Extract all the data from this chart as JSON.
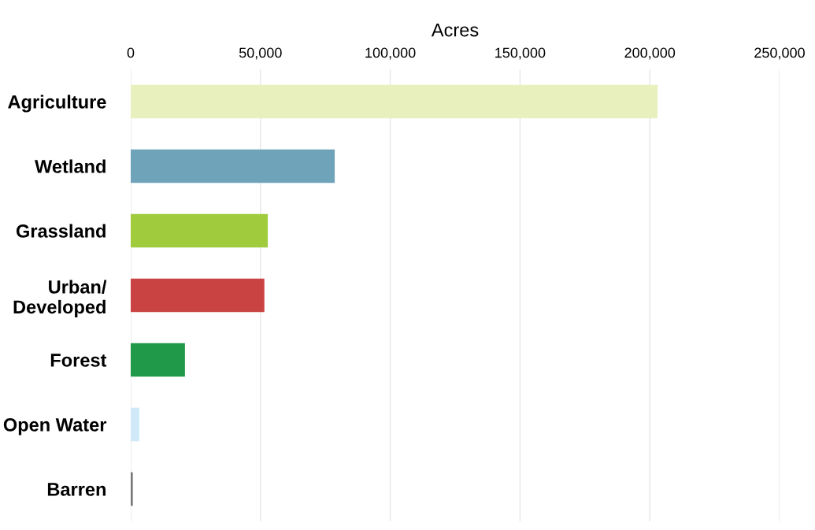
{
  "chart_data": {
    "type": "bar",
    "orientation": "horizontal",
    "xlabel": "Acres",
    "categories": [
      "Agriculture",
      "Wetland",
      "Grassland",
      "Urban/\nDeveloped",
      "Forest",
      "Open Water",
      "Barren"
    ],
    "values": [
      203000,
      78600,
      52800,
      51500,
      20900,
      3300,
      800
    ],
    "colors": [
      "#e8f0be",
      "#6fa3ba",
      "#9fcb3c",
      "#c94343",
      "#209a48",
      "#cfe9f8",
      "#777777"
    ],
    "xlim": [
      0,
      250000
    ],
    "xticks": [
      {
        "value": 0,
        "label": "0"
      },
      {
        "value": 50000,
        "label": "50,000"
      },
      {
        "value": 100000,
        "label": "100,000"
      },
      {
        "value": 150000,
        "label": "150,000"
      },
      {
        "value": 200000,
        "label": "200,000"
      },
      {
        "value": 250000,
        "label": "250,000"
      }
    ],
    "grid": "x",
    "legend": false
  }
}
